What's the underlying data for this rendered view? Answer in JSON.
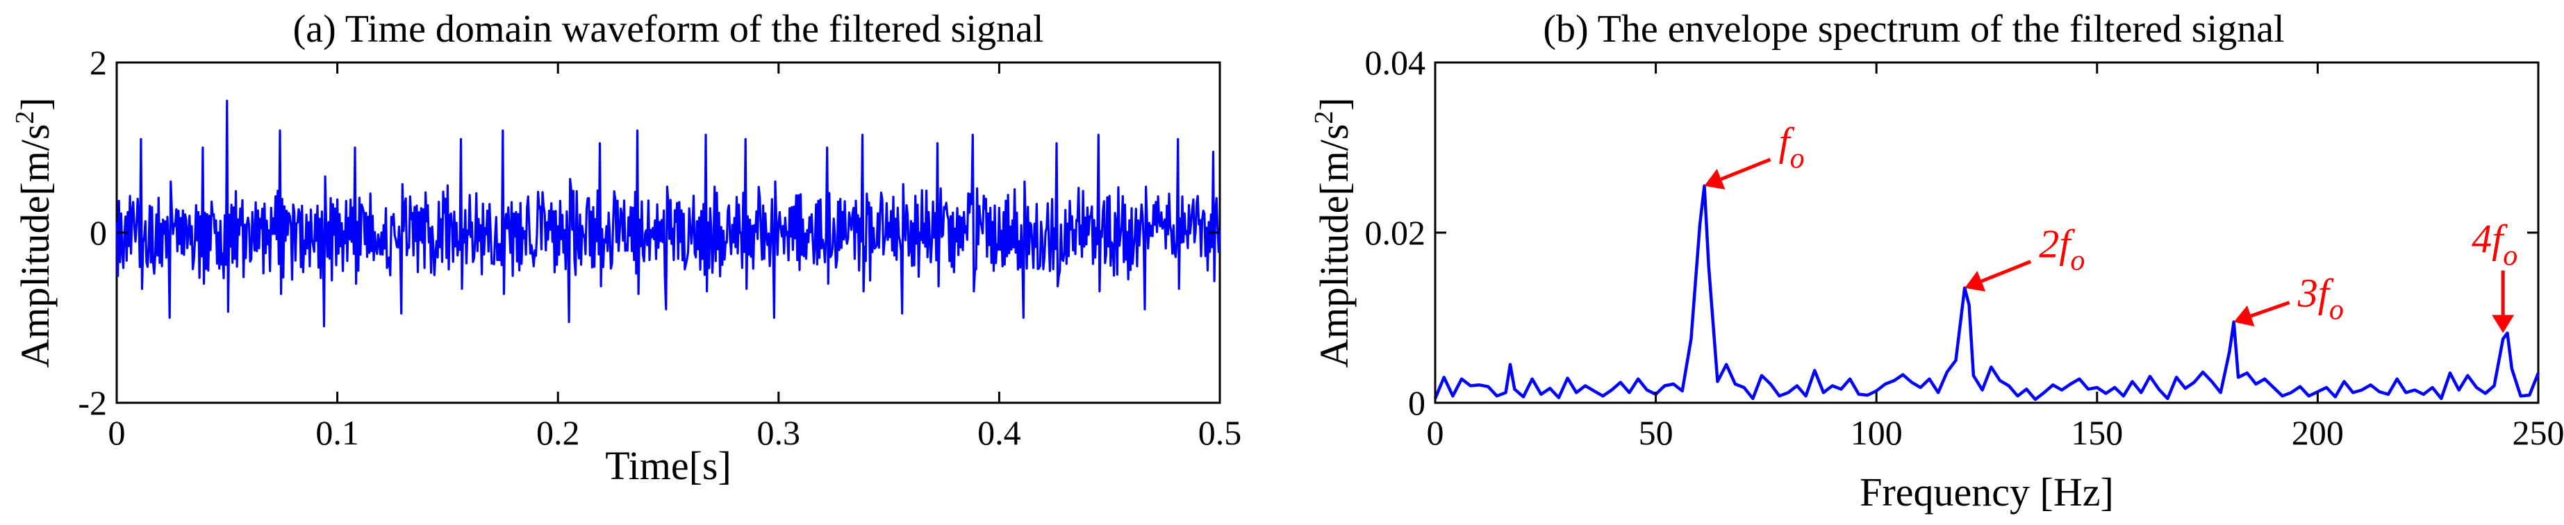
{
  "colors": {
    "signal": "#0000ff",
    "annotation": "#ff0000",
    "axis": "#000000"
  },
  "chart_data": [
    {
      "type": "line",
      "title": "(a) Time domain waveform of the filtered signal",
      "xlabel": "Time[s]",
      "ylabel_main": "Amplitude[m/s",
      "ylabel_sup": "2",
      "ylabel_close": "]",
      "xlim": [
        0,
        0.5
      ],
      "ylim": [
        -2,
        2
      ],
      "xticks": [
        0,
        0.1,
        0.2,
        0.3,
        0.4,
        0.5
      ],
      "xtick_labels": [
        "0",
        "0.1",
        "0.2",
        "0.3",
        "0.4",
        "0.5"
      ],
      "yticks": [
        -2,
        0,
        2
      ],
      "ytick_labels": [
        "-2",
        "0",
        "2"
      ],
      "grid": false,
      "series": [
        {
          "sample_interval": 0.0005,
          "typical_range": [
            -0.6,
            0.6
          ],
          "peak_times": [
            0.011,
            0.024,
            0.039,
            0.05,
            0.074,
            0.094,
            0.108,
            0.129,
            0.156,
            0.175,
            0.205,
            0.219,
            0.236,
            0.249,
            0.267,
            0.285,
            0.298,
            0.322,
            0.338,
            0.356,
            0.372,
            0.388,
            0.411,
            0.426,
            0.445,
            0.466,
            0.481,
            0.497
          ],
          "peak_values": [
            1.1,
            -1.0,
            1.0,
            1.55,
            1.2,
            -1.1,
            1.0,
            -0.95,
            1.1,
            1.2,
            -1.05,
            1.05,
            1.2,
            -0.9,
            1.15,
            1.1,
            -1.0,
            1.0,
            1.15,
            -0.95,
            1.05,
            1.15,
            -1.0,
            1.05,
            1.15,
            -0.9,
            1.1,
            0.95
          ]
        }
      ]
    },
    {
      "type": "line",
      "title": "(b) The envelope spectrum of the filtered signal",
      "xlabel": "Frequency [Hz]",
      "ylabel_main": "Amplitude[m/s",
      "ylabel_sup": "2",
      "ylabel_close": "]",
      "xlim": [
        0,
        250
      ],
      "ylim": [
        0,
        0.04
      ],
      "xticks": [
        0,
        50,
        100,
        150,
        200,
        250
      ],
      "xtick_labels": [
        "0",
        "50",
        "100",
        "150",
        "200",
        "250"
      ],
      "yticks": [
        0,
        0.02,
        0.04
      ],
      "ytick_labels": [
        "0",
        "0.02",
        "0.04"
      ],
      "grid": false,
      "series": [
        {
          "x": [
            0,
            2,
            4,
            6,
            8,
            10,
            12,
            14,
            16,
            17,
            18,
            20,
            22,
            24,
            26,
            28,
            30,
            32,
            34,
            36,
            38,
            40,
            42,
            44,
            46,
            48,
            50,
            52,
            54,
            56,
            58,
            60,
            61,
            62,
            64,
            66,
            68,
            70,
            72,
            74,
            76,
            78,
            80,
            82,
            84,
            86,
            88,
            90,
            92,
            94,
            96,
            98,
            100,
            102,
            104,
            106,
            108,
            110,
            112,
            114,
            116,
            118,
            120,
            121,
            122,
            124,
            126,
            128,
            130,
            132,
            134,
            136,
            138,
            140,
            142,
            144,
            146,
            148,
            150,
            152,
            154,
            156,
            158,
            160,
            162,
            164,
            166,
            168,
            170,
            172,
            174,
            176,
            178,
            180,
            181,
            182,
            184,
            186,
            188,
            190,
            192,
            194,
            196,
            198,
            200,
            202,
            204,
            206,
            208,
            210,
            212,
            214,
            216,
            218,
            220,
            222,
            224,
            226,
            228,
            230,
            232,
            234,
            236,
            238,
            240,
            242,
            243,
            244,
            246,
            248,
            250
          ],
          "y": [
            0.0005,
            0.003,
            0.0008,
            0.0028,
            0.002,
            0.0021,
            0.0019,
            0.0008,
            0.0012,
            0.0045,
            0.0016,
            0.0007,
            0.0028,
            0.001,
            0.0017,
            0.0006,
            0.0029,
            0.0012,
            0.002,
            0.0014,
            0.0008,
            0.0015,
            0.0024,
            0.0012,
            0.0028,
            0.0015,
            0.001,
            0.002,
            0.0022,
            0.0014,
            0.0075,
            0.021,
            0.0255,
            0.016,
            0.0025,
            0.0045,
            0.0022,
            0.0018,
            0.0005,
            0.0032,
            0.0022,
            0.0008,
            0.0012,
            0.002,
            0.0008,
            0.0038,
            0.0012,
            0.002,
            0.0016,
            0.0028,
            0.001,
            0.0009,
            0.0014,
            0.0022,
            0.0026,
            0.0033,
            0.0024,
            0.0018,
            0.0028,
            0.0012,
            0.0036,
            0.005,
            0.0135,
            0.0115,
            0.0032,
            0.0015,
            0.0042,
            0.0026,
            0.002,
            0.0008,
            0.0016,
            0.0004,
            0.0012,
            0.0021,
            0.0015,
            0.0022,
            0.0028,
            0.0016,
            0.0018,
            0.0011,
            0.0018,
            0.0008,
            0.0025,
            0.0012,
            0.0031,
            0.0016,
            0.0005,
            0.003,
            0.0017,
            0.0024,
            0.0036,
            0.0025,
            0.0012,
            0.006,
            0.0095,
            0.003,
            0.0035,
            0.0022,
            0.0028,
            0.0018,
            0.0008,
            0.0012,
            0.0019,
            0.0008,
            0.0013,
            0.0018,
            0.0007,
            0.0025,
            0.0012,
            0.0015,
            0.0021,
            0.0013,
            0.001,
            0.0028,
            0.0012,
            0.0015,
            0.001,
            0.0018,
            0.0005,
            0.0035,
            0.0015,
            0.0032,
            0.0018,
            0.0011,
            0.002,
            0.0075,
            0.0082,
            0.004,
            0.0008,
            0.0009,
            0.0035
          ]
        }
      ],
      "annotations": [
        {
          "base": "f",
          "sub": "o",
          "x": 61,
          "y": 0.0255,
          "label_dir": "upper-right"
        },
        {
          "base": "2f",
          "sub": "o",
          "x": 120,
          "y": 0.0135,
          "label_dir": "upper-right"
        },
        {
          "base": "3f",
          "sub": "o",
          "x": 181,
          "y": 0.0095,
          "label_dir": "right"
        },
        {
          "base": "4f",
          "sub": "o",
          "x": 242,
          "y": 0.0082,
          "label_dir": "above"
        }
      ]
    }
  ]
}
